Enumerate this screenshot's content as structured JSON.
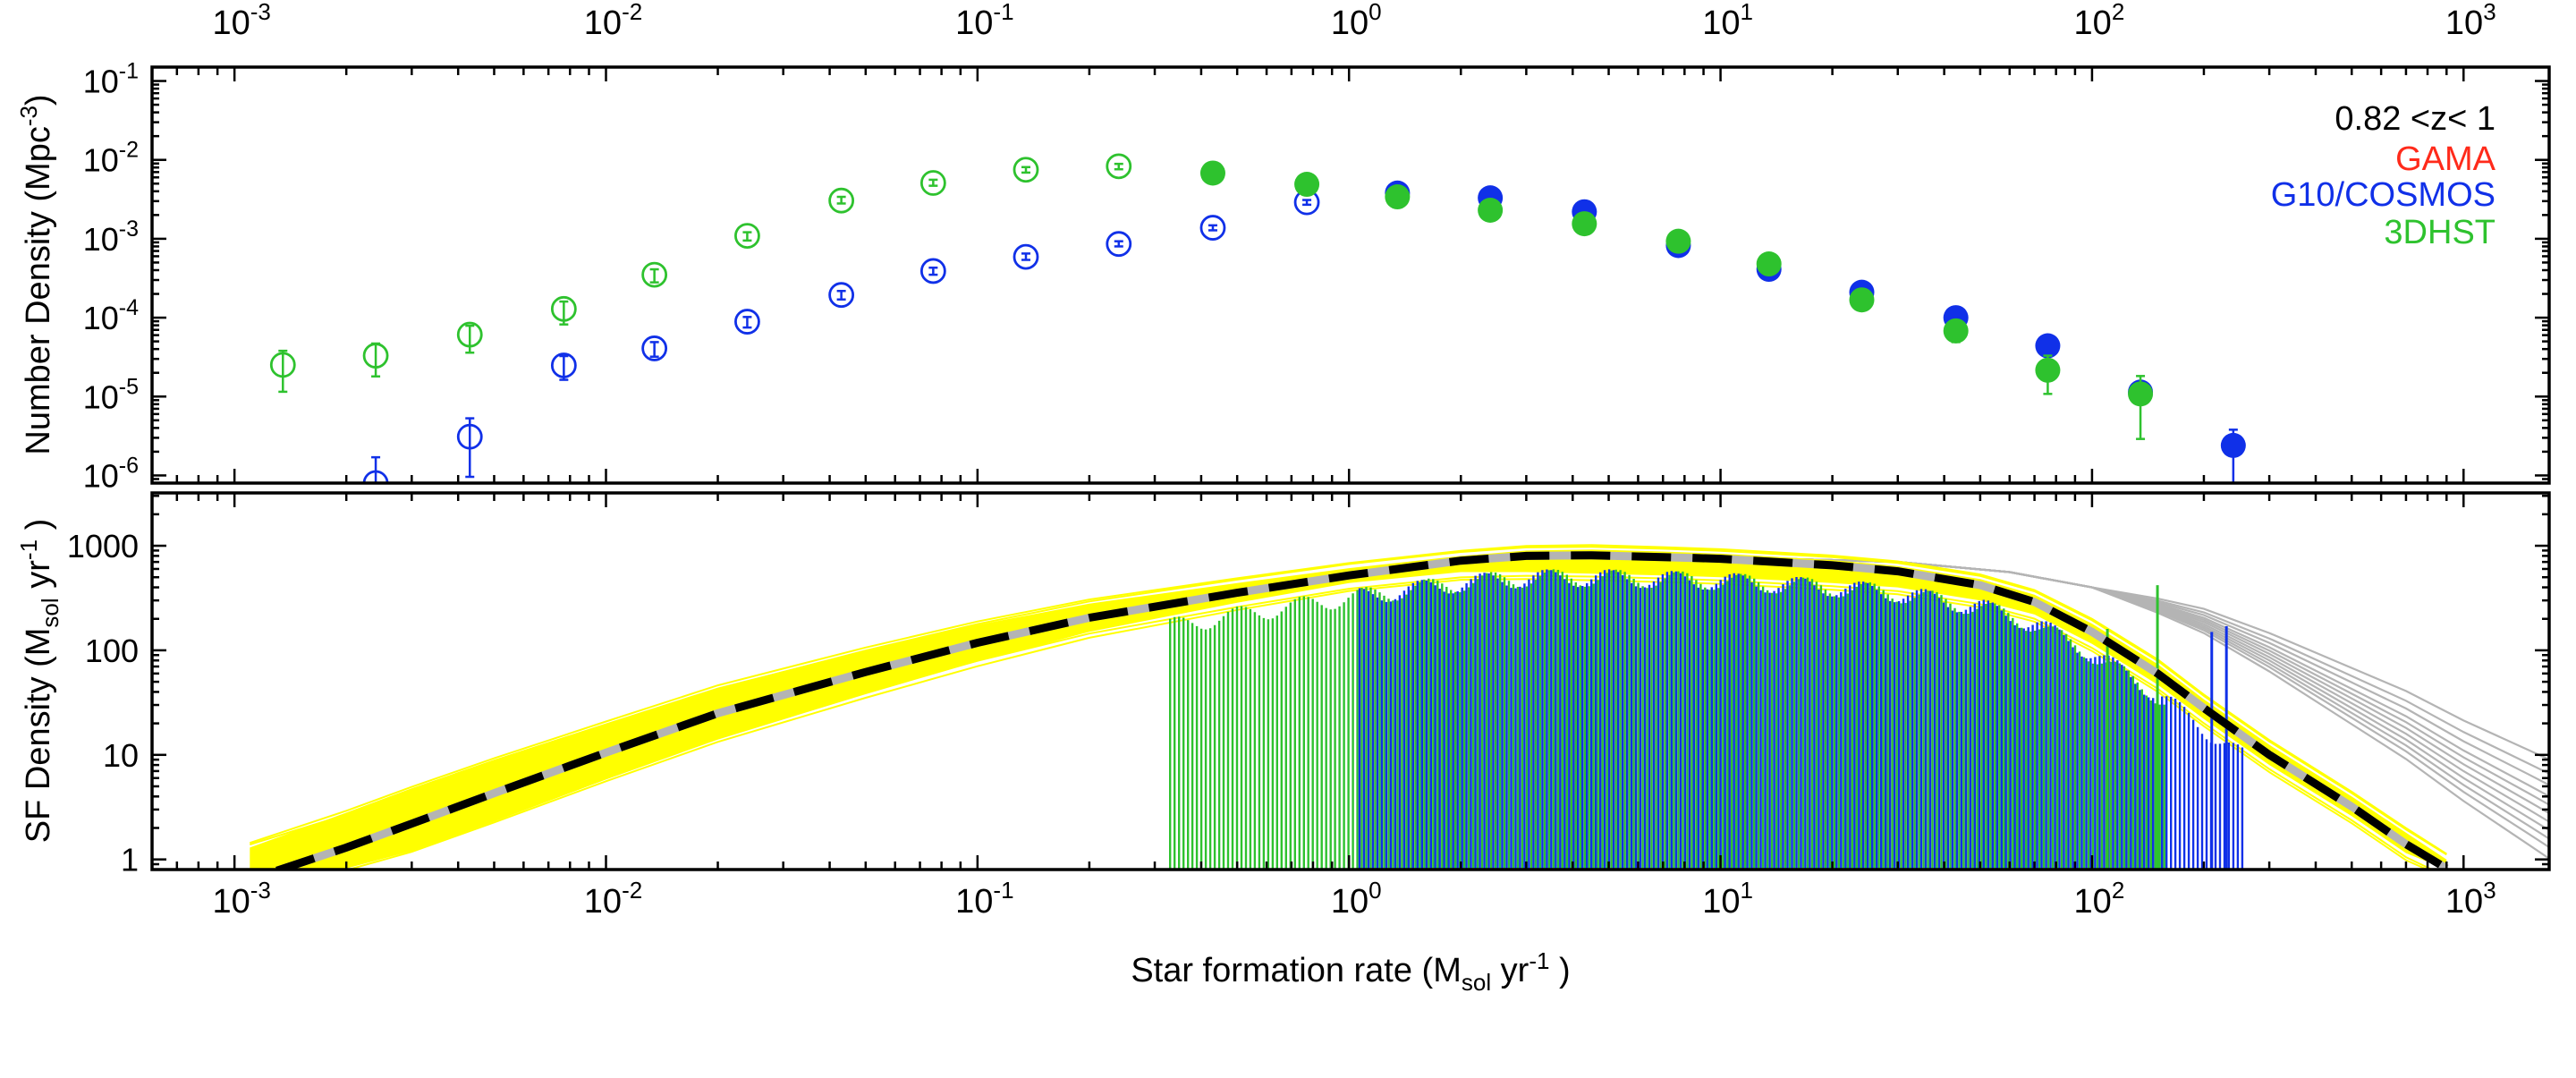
{
  "legend": {
    "redshift_label": "0.82 <z< 1",
    "entries": [
      {
        "name": "GAMA",
        "color": "#ff2a1a"
      },
      {
        "name": "G10/COSMOS",
        "color": "#1030e8"
      },
      {
        "name": "3DHST",
        "color": "#2ec22e"
      }
    ]
  },
  "chart_data": [
    {
      "type": "scatter",
      "panel": "top",
      "x_scale": "log",
      "y_scale": "log",
      "xlim": [
        0.0006,
        1700
      ],
      "ylim": [
        8e-07,
        0.15
      ],
      "ylabel_main": "Number Density (Mpc",
      "ylabel_sup": "-3",
      "ylabel_tail": ")",
      "x_ticks": [
        {
          "value": 0.001,
          "base": "10",
          "exp": "-3"
        },
        {
          "value": 0.01,
          "base": "10",
          "exp": "-2"
        },
        {
          "value": 0.1,
          "base": "10",
          "exp": "-1"
        },
        {
          "value": 1,
          "base": "10",
          "exp": "0"
        },
        {
          "value": 10,
          "base": "10",
          "exp": "1"
        },
        {
          "value": 100,
          "base": "10",
          "exp": "2"
        },
        {
          "value": 1000,
          "base": "10",
          "exp": "3"
        }
      ],
      "y_ticks": [
        {
          "value": 1e-06,
          "base": "10",
          "exp": "-6"
        },
        {
          "value": 1e-05,
          "base": "10",
          "exp": "-5"
        },
        {
          "value": 0.0001,
          "base": "10",
          "exp": "-4"
        },
        {
          "value": 0.001,
          "base": "10",
          "exp": "-3"
        },
        {
          "value": 0.01,
          "base": "10",
          "exp": "-2"
        },
        {
          "value": 0.1,
          "base": "10",
          "exp": "-1"
        }
      ],
      "series": [
        {
          "name": "3DHST",
          "color": "#2ec22e",
          "open": [
            {
              "x": 0.00135,
              "y": 2.52e-05,
              "lo": 1.15e-05,
              "hi": 3.8e-05
            },
            {
              "x": 0.0024,
              "y": 3.3e-05,
              "lo": 1.8e-05,
              "hi": 4.7e-05
            },
            {
              "x": 0.0043,
              "y": 6.1e-05,
              "lo": 3.6e-05,
              "hi": 7.9e-05
            },
            {
              "x": 0.0077,
              "y": 0.000129,
              "lo": 8.2e-05,
              "hi": 0.00016
            },
            {
              "x": 0.0135,
              "y": 0.00035,
              "lo": 0.00028,
              "hi": 0.00041
            },
            {
              "x": 0.024,
              "y": 0.00109,
              "lo": 0.00095,
              "hi": 0.00121
            },
            {
              "x": 0.043,
              "y": 0.00305,
              "lo": 0.0028,
              "hi": 0.0034
            },
            {
              "x": 0.076,
              "y": 0.0051,
              "lo": 0.0047,
              "hi": 0.0056
            },
            {
              "x": 0.135,
              "y": 0.0075,
              "lo": 0.0069,
              "hi": 0.0081
            },
            {
              "x": 0.24,
              "y": 0.0083,
              "lo": 0.0076,
              "hi": 0.0089
            }
          ],
          "filled": [
            {
              "x": 0.43,
              "y": 0.0068
            },
            {
              "x": 0.77,
              "y": 0.0049
            },
            {
              "x": 1.35,
              "y": 0.0034
            },
            {
              "x": 2.4,
              "y": 0.0023
            },
            {
              "x": 4.3,
              "y": 0.00155
            },
            {
              "x": 7.7,
              "y": 0.00093
            },
            {
              "x": 13.5,
              "y": 0.00048
            },
            {
              "x": 24,
              "y": 0.000168
            },
            {
              "x": 43,
              "y": 6.8e-05,
              "lo": 4.9e-05,
              "hi": 8.1e-05
            },
            {
              "x": 76,
              "y": 2.16e-05,
              "lo": 1.08e-05,
              "hi": 3.3e-05
            },
            {
              "x": 135,
              "y": 1.08e-05,
              "lo": 2.9e-06,
              "hi": 1.82e-05
            }
          ]
        },
        {
          "name": "G10/COSMOS",
          "color": "#1030e8",
          "open": [
            {
              "x": 0.0024,
              "y": 8e-07,
              "lo": 6e-07,
              "hi": 1.7e-06
            },
            {
              "x": 0.0043,
              "y": 3.1e-06,
              "lo": 9.6e-07,
              "hi": 5.3e-06
            },
            {
              "x": 0.0077,
              "y": 2.48e-05,
              "lo": 1.63e-05,
              "hi": 3.26e-05
            },
            {
              "x": 0.0135,
              "y": 4.08e-05,
              "lo": 3.2e-05,
              "hi": 4.9e-05
            },
            {
              "x": 0.024,
              "y": 8.9e-05,
              "lo": 7.5e-05,
              "hi": 0.000102
            },
            {
              "x": 0.043,
              "y": 0.000194,
              "lo": 0.00017,
              "hi": 0.000218
            },
            {
              "x": 0.076,
              "y": 0.00039,
              "lo": 0.00035,
              "hi": 0.00043
            },
            {
              "x": 0.135,
              "y": 0.00059,
              "lo": 0.00054,
              "hi": 0.00065
            },
            {
              "x": 0.24,
              "y": 0.00086,
              "lo": 0.0008,
              "hi": 0.00093
            },
            {
              "x": 0.43,
              "y": 0.00138,
              "lo": 0.00128,
              "hi": 0.00148
            },
            {
              "x": 0.77,
              "y": 0.0029,
              "lo": 0.0027,
              "hi": 0.0031
            }
          ],
          "filled": [
            {
              "x": 1.35,
              "y": 0.0038
            },
            {
              "x": 2.4,
              "y": 0.0033
            },
            {
              "x": 4.3,
              "y": 0.0022
            },
            {
              "x": 7.7,
              "y": 0.00082
            },
            {
              "x": 13.5,
              "y": 0.00041
            },
            {
              "x": 24,
              "y": 0.00021
            },
            {
              "x": 43,
              "y": 0.0001
            },
            {
              "x": 76,
              "y": 4.4e-05
            },
            {
              "x": 135,
              "y": 1.14e-05
            },
            {
              "x": 240,
              "y": 2.4e-06,
              "lo": 8e-07,
              "hi": 3.8e-06
            }
          ]
        }
      ]
    },
    {
      "type": "line",
      "panel": "bottom",
      "x_scale": "log",
      "y_scale": "log",
      "xlim": [
        0.0006,
        1700
      ],
      "ylim": [
        0.8,
        3200
      ],
      "xlabel_main": "Star formation rate (M",
      "xlabel_sub": "sol",
      "xlabel_mid": " yr",
      "xlabel_sup": "-1",
      "xlabel_tail": " )",
      "ylabel_main": "SF Density (M",
      "ylabel_sub": "sol",
      "ylabel_mid": " yr",
      "ylabel_sup": "-1",
      "ylabel_tail": " )",
      "x_ticks": [
        {
          "value": 0.001,
          "base": "10",
          "exp": "-3"
        },
        {
          "value": 0.01,
          "base": "10",
          "exp": "-2"
        },
        {
          "value": 0.1,
          "base": "10",
          "exp": "-1"
        },
        {
          "value": 1,
          "base": "10",
          "exp": "0"
        },
        {
          "value": 10,
          "base": "10",
          "exp": "1"
        },
        {
          "value": 100,
          "base": "10",
          "exp": "2"
        },
        {
          "value": 1000,
          "base": "10",
          "exp": "3"
        }
      ],
      "y_ticks": [
        {
          "value": 1,
          "label": "1"
        },
        {
          "value": 10,
          "label": "10"
        },
        {
          "value": 100,
          "label": "100"
        },
        {
          "value": 1000,
          "label": "1000"
        }
      ],
      "best_fit": {
        "name": "best fit",
        "color": "#000000",
        "x": [
          0.0013,
          0.002,
          0.003,
          0.005,
          0.01,
          0.02,
          0.05,
          0.1,
          0.2,
          0.5,
          1,
          2,
          3,
          4.5,
          7,
          10,
          20,
          30,
          50,
          70,
          100,
          150,
          200,
          300,
          500,
          700,
          900
        ],
        "y": [
          0.78,
          1.3,
          2.2,
          4.3,
          10.5,
          25,
          62,
          118,
          205,
          355,
          520,
          720,
          800,
          810,
          780,
          750,
          650,
          570,
          420,
          290,
          150,
          60,
          28,
          10,
          3.2,
          1.4,
          0.82
        ]
      },
      "band": {
        "name": "uncertainty band",
        "color": "#ffff00",
        "x": [
          0.0011,
          0.002,
          0.003,
          0.005,
          0.01,
          0.02,
          0.05,
          0.1,
          0.2,
          0.5,
          1,
          2,
          3,
          4.5,
          7,
          10,
          20,
          30,
          50,
          70,
          100,
          150,
          200,
          300,
          500,
          700,
          900
        ],
        "upper": [
          1.3,
          2.8,
          4.8,
          9,
          20,
          44,
          100,
          175,
          280,
          440,
          610,
          800,
          900,
          920,
          880,
          840,
          730,
          640,
          480,
          340,
          180,
          74,
          34,
          12.5,
          4,
          1.8,
          1.0
        ],
        "lower": [
          0.8,
          0.82,
          1.2,
          2.3,
          5.8,
          14,
          38,
          78,
          150,
          285,
          440,
          560,
          560,
          540,
          520,
          500,
          440,
          400,
          300,
          220,
          115,
          47,
          22,
          8,
          2.6,
          1.15,
          0.8
        ]
      },
      "grey_models": {
        "name": "alternative fits",
        "color": "#b4b4b4",
        "x": [
          0.0013,
          0.01,
          0.1,
          1,
          3,
          10,
          30,
          60,
          100,
          150,
          200,
          300,
          500,
          700,
          1000,
          1500,
          1700
        ],
        "base": [
          0.85,
          10.5,
          125,
          530,
          780,
          780,
          700,
          560,
          400,
          250,
          170,
          80,
          28,
          14,
          6,
          2.5,
          1.9
        ]
      },
      "bars": [
        {
          "name": "3DHST",
          "color": "#2ec22e",
          "x_min": 0.33,
          "x_max": 160
        },
        {
          "name": "G10/COSMOS",
          "color": "#1030e8",
          "x_min": 1.05,
          "x_max": 250
        }
      ]
    }
  ]
}
